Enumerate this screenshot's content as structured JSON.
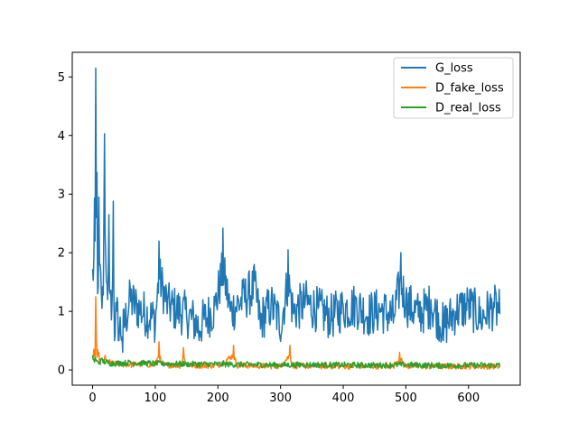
{
  "chart_data": {
    "type": "line",
    "title": "",
    "xlabel": "",
    "ylabel": "",
    "xlim": [
      -32.5,
      682.5
    ],
    "ylim": [
      -0.26,
      5.42
    ],
    "xticks": [
      0,
      100,
      200,
      300,
      400,
      500,
      600
    ],
    "yticks": [
      0,
      1,
      2,
      3,
      4,
      5
    ],
    "grid": false,
    "legend": "top-right",
    "n_points": 651,
    "series": [
      {
        "name": "G_loss",
        "color": "#1f77b4",
        "keypoints": [
          [
            0,
            1.72
          ],
          [
            2,
            1.9
          ],
          [
            3,
            2.93
          ],
          [
            4,
            2.2
          ],
          [
            5,
            5.15
          ],
          [
            6,
            2.6
          ],
          [
            7,
            3.37
          ],
          [
            8,
            1.3
          ],
          [
            10,
            2.95
          ],
          [
            12,
            1.8
          ],
          [
            15,
            1.05
          ],
          [
            18,
            2.6
          ],
          [
            19,
            4.03
          ],
          [
            21,
            1.9
          ],
          [
            24,
            1.2
          ],
          [
            26,
            2.65
          ],
          [
            28,
            1.3
          ],
          [
            31,
            1.15
          ],
          [
            33,
            2.88
          ],
          [
            35,
            0.5
          ],
          [
            38,
            1.0
          ],
          [
            42,
            0.5
          ],
          [
            48,
            0.3
          ],
          [
            60,
            1.4
          ],
          [
            75,
            1.05
          ],
          [
            100,
            0.7
          ],
          [
            106,
            2.2
          ],
          [
            120,
            1.2
          ],
          [
            150,
            0.9
          ],
          [
            170,
            0.5
          ],
          [
            195,
            1.1
          ],
          [
            208,
            2.42
          ],
          [
            220,
            1.0
          ],
          [
            240,
            1.4
          ],
          [
            258,
            1.8
          ],
          [
            268,
            0.7
          ],
          [
            285,
            1.2
          ],
          [
            301,
            0.6
          ],
          [
            312,
            2.05
          ],
          [
            320,
            1.0
          ],
          [
            340,
            1.3
          ],
          [
            360,
            1.05
          ],
          [
            380,
            0.8
          ],
          [
            400,
            1.1
          ],
          [
            420,
            1.2
          ],
          [
            440,
            0.9
          ],
          [
            460,
            1.05
          ],
          [
            480,
            0.8
          ],
          [
            492,
            2.0
          ],
          [
            500,
            1.3
          ],
          [
            520,
            0.9
          ],
          [
            540,
            1.2
          ],
          [
            560,
            0.5
          ],
          [
            580,
            1.0
          ],
          [
            600,
            1.2
          ],
          [
            620,
            0.8
          ],
          [
            640,
            1.15
          ],
          [
            650,
            0.95
          ]
        ],
        "baseline": 1.0,
        "noise": 0.4
      },
      {
        "name": "D_fake_loss",
        "color": "#ff7f0e",
        "keypoints": [
          [
            0,
            0.2
          ],
          [
            2,
            0.35
          ],
          [
            4,
            0.25
          ],
          [
            5,
            1.25
          ],
          [
            6,
            0.55
          ],
          [
            8,
            0.35
          ],
          [
            10,
            0.3
          ],
          [
            15,
            0.2
          ],
          [
            20,
            0.25
          ],
          [
            30,
            0.15
          ],
          [
            40,
            0.12
          ],
          [
            60,
            0.1
          ],
          [
            80,
            0.12
          ],
          [
            100,
            0.08
          ],
          [
            106,
            0.48
          ],
          [
            110,
            0.1
          ],
          [
            140,
            0.07
          ],
          [
            145,
            0.38
          ],
          [
            150,
            0.08
          ],
          [
            200,
            0.07
          ],
          [
            225,
            0.42
          ],
          [
            230,
            0.08
          ],
          [
            270,
            0.06
          ],
          [
            300,
            0.05
          ],
          [
            315,
            0.42
          ],
          [
            320,
            0.06
          ],
          [
            400,
            0.05
          ],
          [
            480,
            0.05
          ],
          [
            490,
            0.3
          ],
          [
            500,
            0.05
          ],
          [
            560,
            0.04
          ],
          [
            600,
            0.05
          ],
          [
            650,
            0.04
          ]
        ],
        "baseline": 0.08,
        "noise": 0.05
      },
      {
        "name": "D_real_loss",
        "color": "#2ca02c",
        "keypoints": [
          [
            0,
            0.25
          ],
          [
            2,
            0.18
          ],
          [
            4,
            0.22
          ],
          [
            8,
            0.15
          ],
          [
            15,
            0.2
          ],
          [
            30,
            0.12
          ],
          [
            60,
            0.15
          ],
          [
            100,
            0.12
          ],
          [
            150,
            0.1
          ],
          [
            200,
            0.1
          ],
          [
            250,
            0.08
          ],
          [
            300,
            0.07
          ],
          [
            350,
            0.08
          ],
          [
            400,
            0.07
          ],
          [
            450,
            0.06
          ],
          [
            500,
            0.08
          ],
          [
            550,
            0.05
          ],
          [
            600,
            0.06
          ],
          [
            650,
            0.06
          ]
        ],
        "baseline": 0.1,
        "noise": 0.05
      }
    ]
  }
}
